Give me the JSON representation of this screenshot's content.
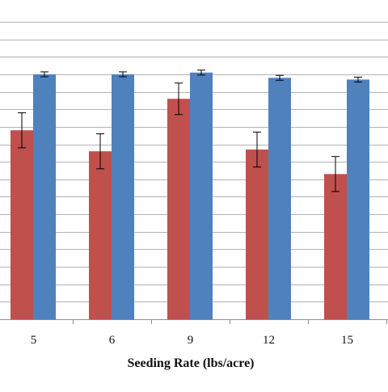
{
  "chart_data": {
    "type": "bar",
    "title": "",
    "xlabel": "Seeding Rate (lbs/acre)",
    "ylabel": "",
    "categories": [
      "5",
      "6",
      "9",
      "12",
      "15"
    ],
    "ylim": [
      0,
      8.5
    ],
    "grid": true,
    "legend": "none",
    "series": [
      {
        "color": "#c0504d",
        "values": [
          5.4,
          4.8,
          6.3,
          4.85,
          4.15
        ],
        "error": [
          0.5,
          0.5,
          0.45,
          0.5,
          0.5
        ]
      },
      {
        "color": "#4f81bd",
        "values": [
          7.0,
          7.0,
          7.05,
          6.9,
          6.85
        ],
        "error": [
          0.07,
          0.07,
          0.07,
          0.07,
          0.07
        ]
      }
    ]
  }
}
